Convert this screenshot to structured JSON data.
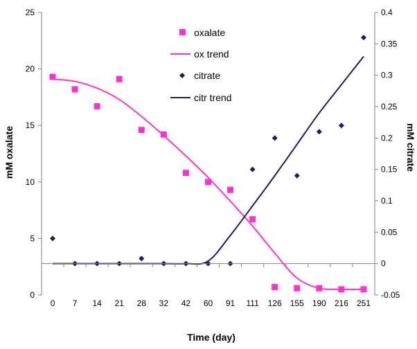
{
  "chart_data": {
    "type": "scatter",
    "title": "",
    "xlabel": "Time (day)",
    "ylabel_left": "mM oxalate",
    "ylabel_right": "mM citrate",
    "categories": [
      "0",
      "7",
      "14",
      "21",
      "28",
      "32",
      "42",
      "60",
      "91",
      "111",
      "126",
      "155",
      "190",
      "216",
      "251"
    ],
    "y_left_range": [
      0,
      25
    ],
    "y_left_ticks": [
      0,
      5,
      10,
      15,
      20,
      25
    ],
    "y_right_range": [
      -0.05,
      0.4
    ],
    "y_right_ticks": [
      "-0.05",
      "0",
      "0.05",
      "0.1",
      "0.15",
      "0.2",
      "0.25",
      "0.3",
      "0.35",
      "0.4"
    ],
    "grid": false,
    "legend_position": "top-center",
    "series": [
      {
        "name": "oxalate",
        "kind": "markers",
        "marker": "square",
        "axis": "left",
        "color": "#ff33cc",
        "values": [
          19.3,
          18.2,
          16.7,
          19.1,
          14.6,
          14.2,
          10.8,
          10.0,
          9.3,
          6.7,
          0.7,
          0.6,
          0.6,
          0.5,
          0.5
        ]
      },
      {
        "name": "ox trend",
        "kind": "line",
        "axis": "left",
        "color": "#ff33cc",
        "values": [
          19.1,
          18.9,
          18.3,
          17.3,
          15.8,
          14.1,
          12.3,
          10.4,
          8.3,
          6.1,
          3.7,
          1.5,
          0.6,
          0.5,
          0.5
        ]
      },
      {
        "name": "citrate",
        "kind": "markers",
        "marker": "diamond",
        "axis": "right",
        "color": "#1c1c5e",
        "values": [
          0.04,
          0.0,
          0.0,
          0.0,
          0.008,
          0.0,
          0.0,
          0.0,
          0.0,
          0.15,
          0.2,
          0.14,
          0.21,
          0.22,
          0.36
        ]
      },
      {
        "name": "citr trend",
        "kind": "line",
        "axis": "right",
        "color": "#1c1c5e",
        "values": [
          0.0,
          0.0,
          0.0,
          0.0,
          0.0,
          0.0,
          0.0,
          0.004,
          0.045,
          0.092,
          0.14,
          0.19,
          0.24,
          0.285,
          0.33
        ]
      }
    ]
  }
}
